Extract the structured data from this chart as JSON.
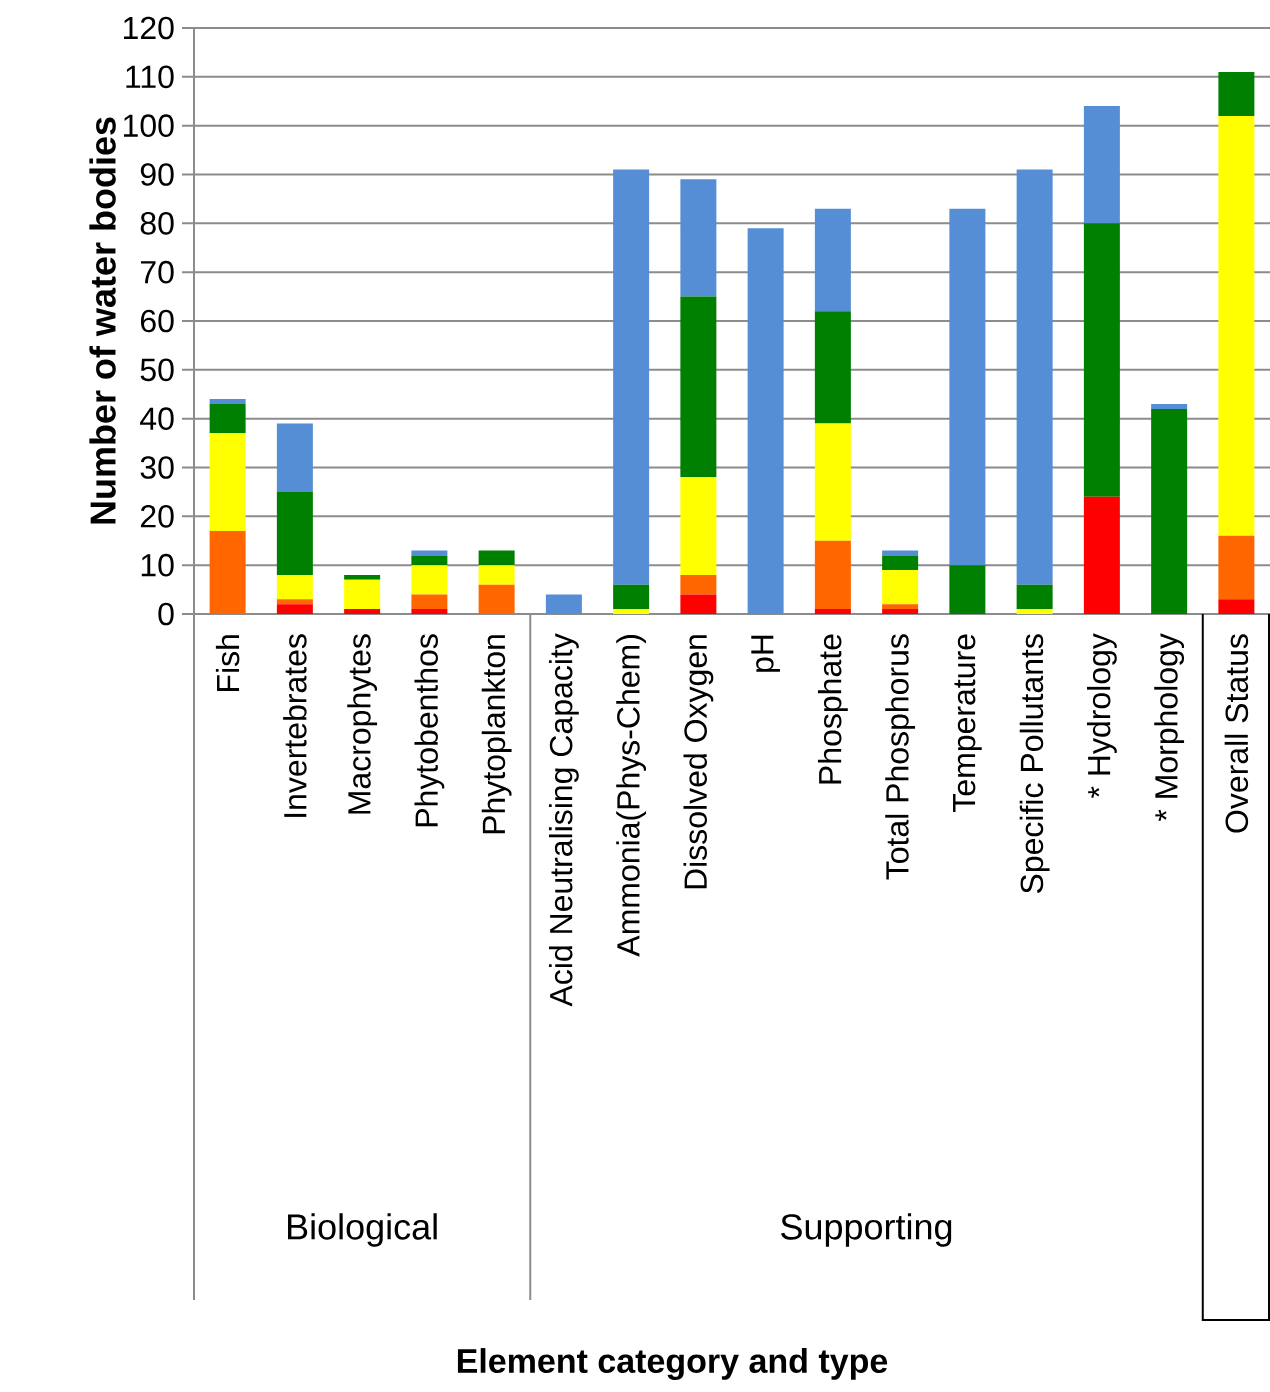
{
  "chart_data": {
    "type": "bar",
    "stacked": true,
    "categories": [
      "Fish",
      "Invertebrates",
      "Macrophytes",
      "Phytobenthos",
      "Phytoplankton",
      "Acid Neutralising Capacity",
      "Ammonia(Phys-Chem)",
      "Dissolved Oxygen",
      "pH",
      "Phosphate",
      "Total Phosphorus",
      "Temperature",
      "Specific Pollutants",
      "* Hydrology",
      "* Morphology",
      "Overall Status"
    ],
    "series": [
      {
        "color": "#ff0000",
        "values": [
          0,
          2,
          1,
          1,
          0,
          0,
          0,
          4,
          0,
          1,
          1,
          0,
          0,
          24,
          0,
          3
        ]
      },
      {
        "color": "#ff6600",
        "values": [
          17,
          1,
          0,
          3,
          6,
          0,
          0,
          4,
          0,
          14,
          1,
          0,
          0,
          0,
          0,
          13
        ]
      },
      {
        "color": "#ffff00",
        "values": [
          20,
          5,
          6,
          6,
          4,
          0,
          1,
          20,
          0,
          24,
          7,
          0,
          1,
          0,
          0,
          86
        ]
      },
      {
        "color": "#008000",
        "values": [
          6,
          17,
          1,
          2,
          3,
          0,
          5,
          37,
          0,
          23,
          3,
          10,
          5,
          56,
          42,
          9
        ]
      },
      {
        "color": "#558ed5",
        "values": [
          1,
          14,
          0,
          1,
          0,
          4,
          85,
          24,
          79,
          21,
          1,
          73,
          85,
          24,
          1,
          0
        ]
      }
    ],
    "ylim": [
      0,
      120
    ],
    "yticks": [
      0,
      10,
      20,
      30,
      40,
      50,
      60,
      70,
      80,
      90,
      100,
      110,
      120
    ],
    "grid": "y",
    "ylabel": "Number of water bodies",
    "annotations": [
      "Biological",
      "Supporting",
      "Element category and type"
    ]
  }
}
